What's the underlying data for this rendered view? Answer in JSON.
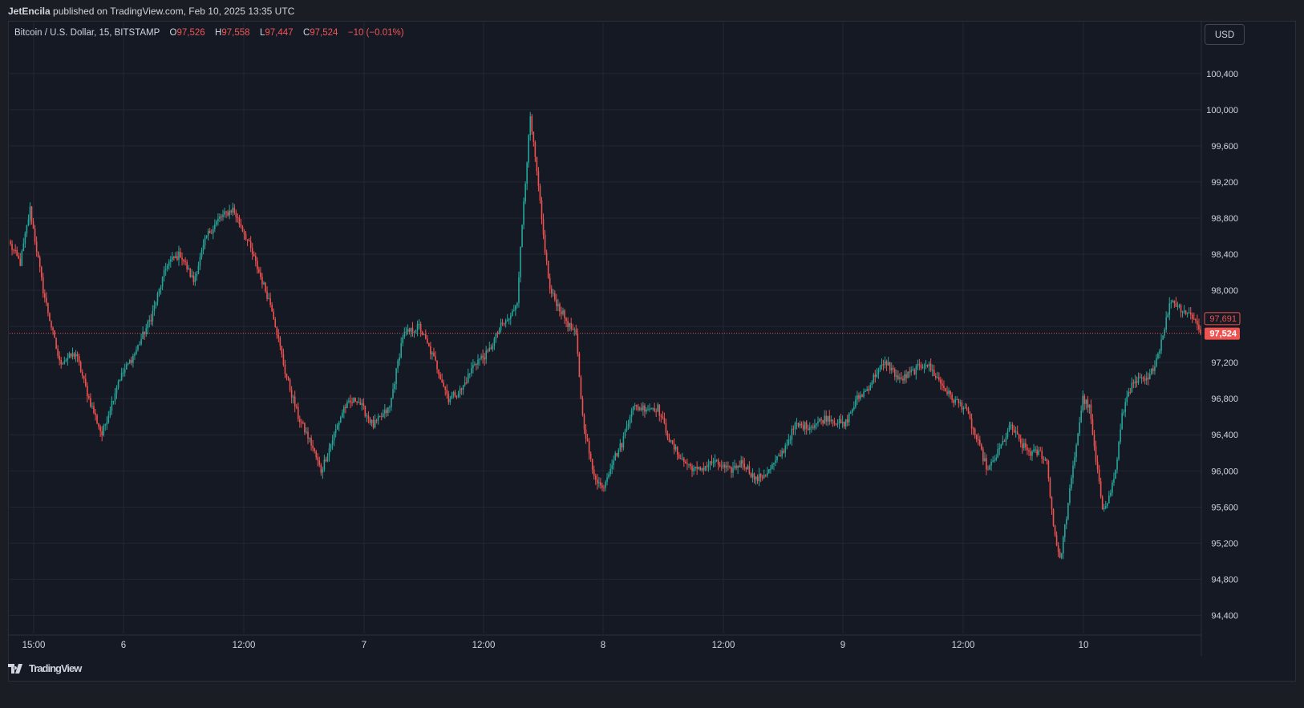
{
  "header": {
    "author": "JetEncila",
    "text": " published on TradingView.com, Feb 10, 2025 13:35 UTC"
  },
  "legend": {
    "symbol": "Bitcoin / U.S. Dollar, 15, BITSTAMP",
    "o_label": "O",
    "o_value": "97,526",
    "h_label": "H",
    "h_value": "97,558",
    "l_label": "L",
    "l_value": "97,447",
    "c_label": "C",
    "c_value": "97,524",
    "change": "−10 (−0.01%)"
  },
  "currency_button": "USD",
  "footer": {
    "brand": "TradingView",
    "logo_icon": "tradingview-logo-icon"
  },
  "colors": {
    "up": "#26a69a",
    "down": "#ef5350",
    "background": "#151924",
    "grid": "#232733",
    "text": "#d1d4dc"
  },
  "chart_data": {
    "type": "candlestick",
    "y_axis": {
      "ticks": [
        94400,
        94800,
        95200,
        95600,
        96000,
        96400,
        96800,
        97200,
        97600,
        98000,
        98400,
        98800,
        99200,
        99600,
        100000,
        100400
      ],
      "tick_labels": [
        "94,400",
        "94,800",
        "95,200",
        "95,600",
        "96,000",
        "96,400",
        "96,800",
        "97,200",
        "",
        "98,000",
        "98,400",
        "98,800",
        "99,200",
        "99,600",
        "100,000",
        "100,400"
      ],
      "range": [
        94200,
        100700
      ]
    },
    "x_axis": {
      "ticks": [
        "15:00",
        "6",
        "12:00",
        "7",
        "12:00",
        "8",
        "12:00",
        "9",
        "12:00",
        "10"
      ]
    },
    "price_labels": {
      "previous": {
        "value": 97691,
        "label": "97,691"
      },
      "last": {
        "value": 97524,
        "label": "97,524"
      }
    },
    "path_keypoints": [
      [
        0,
        98500
      ],
      [
        6,
        98300
      ],
      [
        12,
        98900
      ],
      [
        20,
        98000
      ],
      [
        30,
        97200
      ],
      [
        40,
        97300
      ],
      [
        48,
        96800
      ],
      [
        56,
        96400
      ],
      [
        66,
        97000
      ],
      [
        76,
        97300
      ],
      [
        86,
        97700
      ],
      [
        96,
        98300
      ],
      [
        104,
        98400
      ],
      [
        112,
        98100
      ],
      [
        120,
        98600
      ],
      [
        128,
        98800
      ],
      [
        136,
        98900
      ],
      [
        144,
        98600
      ],
      [
        152,
        98200
      ],
      [
        160,
        97800
      ],
      [
        168,
        97100
      ],
      [
        176,
        96600
      ],
      [
        184,
        96300
      ],
      [
        190,
        96000
      ],
      [
        196,
        96300
      ],
      [
        204,
        96700
      ],
      [
        212,
        96800
      ],
      [
        222,
        96500
      ],
      [
        232,
        96700
      ],
      [
        240,
        97500
      ],
      [
        250,
        97600
      ],
      [
        260,
        97200
      ],
      [
        268,
        96800
      ],
      [
        276,
        96900
      ],
      [
        284,
        97200
      ],
      [
        292,
        97300
      ],
      [
        300,
        97600
      ],
      [
        306,
        97700
      ],
      [
        310,
        97900
      ],
      [
        314,
        99000
      ],
      [
        318,
        99900
      ],
      [
        322,
        99300
      ],
      [
        326,
        98600
      ],
      [
        330,
        98000
      ],
      [
        336,
        97800
      ],
      [
        342,
        97600
      ],
      [
        346,
        97500
      ],
      [
        350,
        96600
      ],
      [
        356,
        96000
      ],
      [
        362,
        95800
      ],
      [
        368,
        96100
      ],
      [
        374,
        96300
      ],
      [
        380,
        96700
      ],
      [
        388,
        96700
      ],
      [
        396,
        96700
      ],
      [
        404,
        96300
      ],
      [
        412,
        96100
      ],
      [
        420,
        96000
      ],
      [
        430,
        96100
      ],
      [
        440,
        96000
      ],
      [
        448,
        96100
      ],
      [
        456,
        95900
      ],
      [
        464,
        96000
      ],
      [
        472,
        96200
      ],
      [
        480,
        96500
      ],
      [
        490,
        96500
      ],
      [
        500,
        96600
      ],
      [
        510,
        96500
      ],
      [
        518,
        96800
      ],
      [
        524,
        96900
      ],
      [
        530,
        97100
      ],
      [
        536,
        97200
      ],
      [
        544,
        97000
      ],
      [
        552,
        97100
      ],
      [
        560,
        97200
      ],
      [
        568,
        97000
      ],
      [
        576,
        96800
      ],
      [
        584,
        96700
      ],
      [
        592,
        96300
      ],
      [
        598,
        96000
      ],
      [
        604,
        96200
      ],
      [
        612,
        96500
      ],
      [
        618,
        96300
      ],
      [
        624,
        96200
      ],
      [
        630,
        96200
      ],
      [
        634,
        96100
      ],
      [
        638,
        95400
      ],
      [
        642,
        95000
      ],
      [
        646,
        95500
      ],
      [
        652,
        96300
      ],
      [
        656,
        96800
      ],
      [
        660,
        96700
      ],
      [
        664,
        96100
      ],
      [
        668,
        95600
      ],
      [
        672,
        95700
      ],
      [
        676,
        96000
      ],
      [
        680,
        96600
      ],
      [
        684,
        96900
      ],
      [
        690,
        97000
      ],
      [
        696,
        97000
      ],
      [
        702,
        97300
      ],
      [
        706,
        97600
      ],
      [
        710,
        97900
      ],
      [
        716,
        97800
      ],
      [
        724,
        97700
      ],
      [
        728,
        97524
      ]
    ]
  }
}
